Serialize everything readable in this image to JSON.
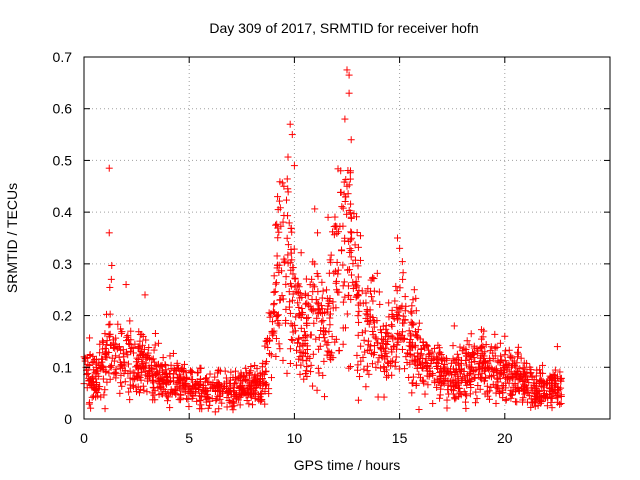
{
  "chart_data": {
    "type": "scatter",
    "title": "Day 309 of 2017, SRMTID for receiver hofn",
    "xlabel": "GPS time / hours",
    "ylabel": "SRMTID / TECUs",
    "xlim": [
      0,
      25
    ],
    "ylim": [
      0,
      0.7
    ],
    "xticks": [
      0,
      5,
      10,
      15,
      20
    ],
    "yticks": [
      0,
      0.1,
      0.2,
      0.3,
      0.4,
      0.5,
      0.6,
      0.7
    ],
    "xtick_labels": [
      "0",
      "5",
      "10",
      "15",
      "20"
    ],
    "ytick_labels": [
      "0",
      "0.1",
      "0.2",
      "0.3",
      "0.4",
      "0.5",
      "0.6",
      "0.7"
    ],
    "grid": true,
    "marker": "+",
    "color": "#ff0000",
    "series": [
      {
        "name": "SRMTID",
        "x_range": [
          0,
          22.7
        ],
        "profile": [
          [
            0.0,
            0.085
          ],
          [
            0.5,
            0.09
          ],
          [
            1.0,
            0.095
          ],
          [
            1.25,
            0.18
          ],
          [
            1.5,
            0.12
          ],
          [
            2.0,
            0.11
          ],
          [
            2.5,
            0.105
          ],
          [
            3.0,
            0.1
          ],
          [
            3.5,
            0.085
          ],
          [
            4.0,
            0.08
          ],
          [
            4.5,
            0.075
          ],
          [
            5.0,
            0.065
          ],
          [
            5.5,
            0.06
          ],
          [
            6.0,
            0.055
          ],
          [
            6.5,
            0.06
          ],
          [
            7.0,
            0.058
          ],
          [
            7.5,
            0.06
          ],
          [
            8.0,
            0.06
          ],
          [
            8.5,
            0.07
          ],
          [
            9.0,
            0.2
          ],
          [
            9.3,
            0.28
          ],
          [
            9.7,
            0.33
          ],
          [
            10.0,
            0.22
          ],
          [
            10.5,
            0.17
          ],
          [
            11.0,
            0.22
          ],
          [
            11.5,
            0.16
          ],
          [
            11.8,
            0.27
          ],
          [
            12.2,
            0.3
          ],
          [
            12.5,
            0.36
          ],
          [
            12.8,
            0.28
          ],
          [
            13.2,
            0.19
          ],
          [
            13.5,
            0.19
          ],
          [
            14.0,
            0.17
          ],
          [
            14.5,
            0.13
          ],
          [
            15.0,
            0.2
          ],
          [
            15.5,
            0.15
          ],
          [
            16.0,
            0.12
          ],
          [
            16.5,
            0.1
          ],
          [
            17.0,
            0.09
          ],
          [
            17.5,
            0.085
          ],
          [
            18.0,
            0.09
          ],
          [
            18.5,
            0.1
          ],
          [
            19.0,
            0.1
          ],
          [
            19.5,
            0.095
          ],
          [
            20.0,
            0.09
          ],
          [
            20.5,
            0.08
          ],
          [
            21.0,
            0.07
          ],
          [
            21.5,
            0.06
          ],
          [
            22.0,
            0.06
          ],
          [
            22.7,
            0.06
          ]
        ],
        "peaks": [
          [
            1.2,
            0.485
          ],
          [
            1.2,
            0.36
          ],
          [
            1.3,
            0.27
          ],
          [
            2.0,
            0.26
          ],
          [
            2.9,
            0.24
          ],
          [
            9.2,
            0.43
          ],
          [
            9.5,
            0.45
          ],
          [
            9.8,
            0.57
          ],
          [
            9.9,
            0.55
          ],
          [
            10.0,
            0.49
          ],
          [
            11.1,
            0.36
          ],
          [
            11.6,
            0.39
          ],
          [
            12.2,
            0.48
          ],
          [
            12.4,
            0.58
          ],
          [
            12.5,
            0.675
          ],
          [
            12.6,
            0.665
          ],
          [
            12.6,
            0.63
          ],
          [
            12.7,
            0.54
          ],
          [
            12.5,
            0.45
          ],
          [
            14.9,
            0.35
          ],
          [
            15.0,
            0.33
          ],
          [
            15.7,
            0.25
          ],
          [
            17.6,
            0.18
          ],
          [
            19.0,
            0.17
          ],
          [
            20.0,
            0.16
          ],
          [
            22.5,
            0.14
          ],
          [
            16.9,
            0.04
          ],
          [
            5.5,
            0.02
          ],
          [
            1.0,
            0.02
          ]
        ]
      }
    ]
  }
}
